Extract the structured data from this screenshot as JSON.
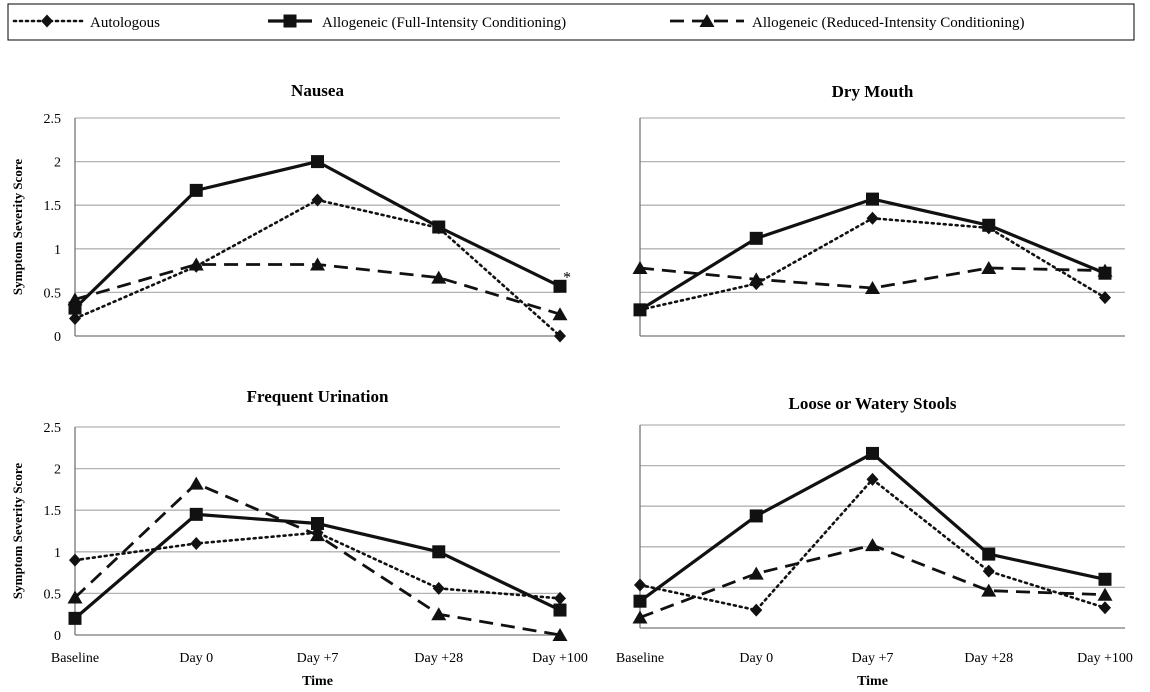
{
  "chart_data": {
    "type": "line",
    "legend": {
      "placement": "top",
      "entries": [
        {
          "name": "Autologous",
          "style": "dotted",
          "marker": "diamond"
        },
        {
          "name": "Allogeneic (Full-Intensity Conditioning)",
          "style": "solid",
          "marker": "square"
        },
        {
          "name": "Allogeneic (Reduced-Intensity Conditioning)",
          "style": "dashed",
          "marker": "triangle"
        }
      ]
    },
    "categories": [
      "Baseline",
      "Day 0",
      "Day +7",
      "Day +28",
      "Day +100"
    ],
    "ylim": [
      0,
      2.5
    ],
    "yticks": [
      "0",
      "0.5",
      "1",
      "1.5",
      "2",
      "2.5"
    ],
    "grid": true,
    "panels": [
      {
        "title": "Nausea",
        "ylabel": "Symptom Severity Score",
        "xlabel": "",
        "show_yticks": true,
        "show_xticks": false,
        "annotation": "*",
        "series": [
          {
            "name": "Autologous",
            "values": [
              0.2,
              0.8,
              1.56,
              1.24,
              0.0
            ]
          },
          {
            "name": "Allogeneic (Full-Intensity Conditioning)",
            "values": [
              0.32,
              1.67,
              2.0,
              1.25,
              0.57
            ]
          },
          {
            "name": "Allogeneic (Reduced-Intensity Conditioning)",
            "values": [
              0.42,
              0.82,
              0.82,
              0.67,
              0.25
            ]
          }
        ]
      },
      {
        "title": "Dry Mouth",
        "ylabel": "",
        "xlabel": "",
        "show_yticks": false,
        "show_xticks": false,
        "annotation": "",
        "series": [
          {
            "name": "Autologous",
            "values": [
              0.3,
              0.6,
              1.35,
              1.24,
              0.44
            ]
          },
          {
            "name": "Allogeneic (Full-Intensity Conditioning)",
            "values": [
              0.3,
              1.12,
              1.57,
              1.27,
              0.72
            ]
          },
          {
            "name": "Allogeneic (Reduced-Intensity Conditioning)",
            "values": [
              0.78,
              0.65,
              0.55,
              0.78,
              0.75
            ]
          }
        ]
      },
      {
        "title": "Frequent Urination",
        "ylabel": "Symptom Severity Score",
        "xlabel": "Time",
        "show_yticks": true,
        "show_xticks": true,
        "annotation": "",
        "series": [
          {
            "name": "Autologous",
            "values": [
              0.9,
              1.1,
              1.23,
              0.56,
              0.44
            ]
          },
          {
            "name": "Allogeneic (Full-Intensity Conditioning)",
            "values": [
              0.2,
              1.45,
              1.34,
              1.0,
              0.3
            ]
          },
          {
            "name": "Allogeneic (Reduced-Intensity Conditioning)",
            "values": [
              0.45,
              1.82,
              1.2,
              0.25,
              0.0
            ]
          }
        ]
      },
      {
        "title": "Loose or Watery Stools",
        "ylabel": "",
        "xlabel": "Time",
        "show_yticks": false,
        "show_xticks": true,
        "annotation": "",
        "series": [
          {
            "name": "Autologous",
            "values": [
              0.53,
              0.22,
              1.83,
              0.7,
              0.25
            ]
          },
          {
            "name": "Allogeneic (Full-Intensity Conditioning)",
            "values": [
              0.33,
              1.38,
              2.15,
              0.91,
              0.6
            ]
          },
          {
            "name": "Allogeneic (Reduced-Intensity Conditioning)",
            "values": [
              0.13,
              0.67,
              1.02,
              0.46,
              0.41
            ]
          }
        ]
      }
    ]
  }
}
